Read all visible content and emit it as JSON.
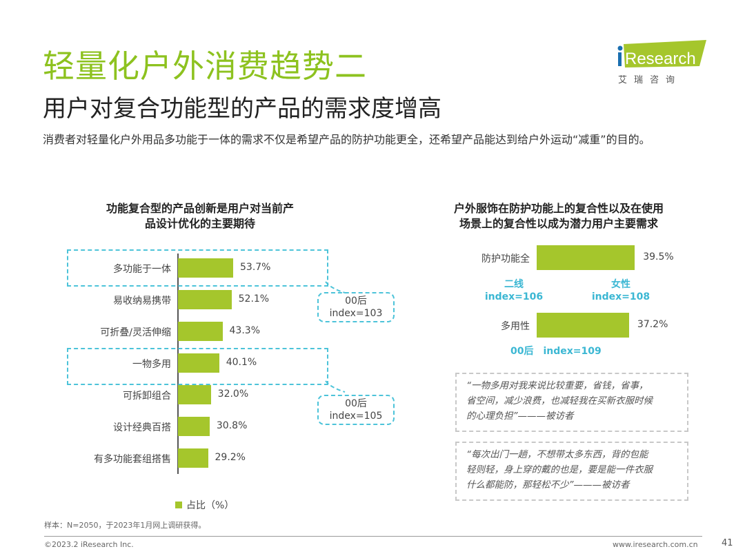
{
  "header": {
    "title": "轻量化户外消费趋势二",
    "subtitle": "用户对复合功能型的产品的需求度增高",
    "description": "消费者对轻量化户外用品多功能于一体的需求不仅是希望产品的防护功能更全，还希望产品能达到给户外运动“减重”的目的。",
    "logo_text": "iResearch",
    "logo_cn": "艾 瑞 咨 询"
  },
  "colors": {
    "bar": "#a5c62c",
    "title": "#8dc21f",
    "highlight": "#3bb7d3"
  },
  "chart_data": [
    {
      "type": "bar",
      "orientation": "horizontal",
      "title": "功能复合型的产品创新是用户对当前产品设计优化的主要期待",
      "title_lines": [
        "功能复合型的产品创新是用户对当前产",
        "品设计优化的主要期待"
      ],
      "categories": [
        "多功能于一体",
        "易收纳易携带",
        "可折叠/灵活伸缩",
        "一物多用",
        "可拆卸组合",
        "设计经典百搭",
        "有多功能套组搭售"
      ],
      "values": [
        53.7,
        52.1,
        43.3,
        40.1,
        32.0,
        30.8,
        29.2
      ],
      "labels": [
        "53.7%",
        "52.1%",
        "43.3%",
        "40.1%",
        "32.0%",
        "30.8%",
        "29.2%"
      ],
      "legend": "占比（%）",
      "legend_position": "bottom",
      "annotations": [
        {
          "category": "多功能于一体",
          "line1": "00后",
          "line2": "index=103"
        },
        {
          "category": "一物多用",
          "line1": "00后",
          "line2": "index=105"
        }
      ]
    },
    {
      "type": "bar",
      "orientation": "horizontal",
      "title": "户外服饰在防护功能上的复合性以及在使用场景上的复合性以成为潜力用户主要需求",
      "title_lines": [
        "户外服饰在防护功能上的复合性以及在使用",
        "场景上的复合性以成为潜力用户主要需求"
      ],
      "categories": [
        "防护功能全",
        "多用性"
      ],
      "values": [
        39.5,
        37.2
      ],
      "labels": [
        "39.5%",
        "37.2%"
      ],
      "annotations": [
        {
          "left": {
            "line1": "二线",
            "line2": "index=106"
          },
          "right": {
            "line1": "女性",
            "line2": "index=108"
          }
        },
        {
          "text1": "00后",
          "text2": "index=109"
        }
      ]
    }
  ],
  "quotes": [
    [
      "“一物多用对我来说比较重要，省钱，省事，",
      "省空间，减少浪费，也减轻我在买新衣服时候",
      "的心理负担”———被访者"
    ],
    [
      "“每次出门一趟，不想带太多东西，背的包能",
      "轻则轻，身上穿的戴的也是，要是能一件衣服",
      "什么都能防，那轻松不少”———被访者"
    ]
  ],
  "footer": {
    "note": "样本：N=2050，于2023年1月网上调研获得。",
    "copyright": "©2023.2 iResearch Inc.",
    "website": "www.iresearch.com.cn",
    "page": "41"
  }
}
